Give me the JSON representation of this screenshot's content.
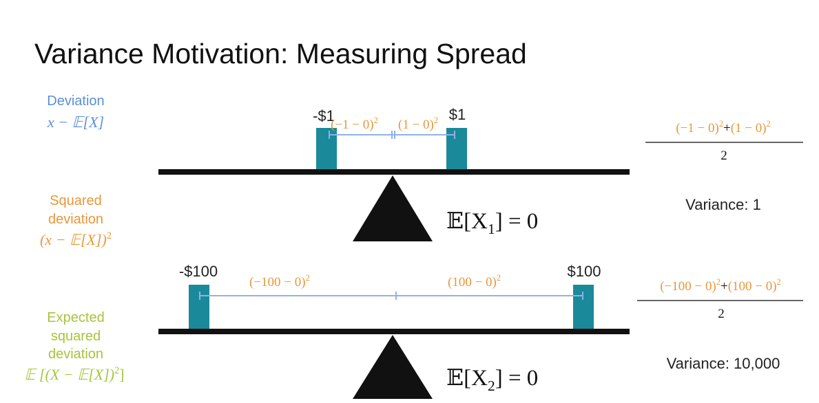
{
  "title": "Variance Motivation: Measuring Spread",
  "legend": {
    "deviation": {
      "lines": [
        "Deviation"
      ],
      "formula": {
        "base": "x − 𝔼[X]"
      }
    },
    "squared": {
      "lines": [
        "Squared",
        "deviation"
      ],
      "formula": {
        "base": "(x − 𝔼[X])",
        "exp": "2"
      }
    },
    "expected": {
      "lines": [
        "Expected",
        "squared",
        "deviation"
      ],
      "formula": {
        "base": "𝔼 [(X − 𝔼[X])",
        "exp": "2",
        "end": "]"
      }
    }
  },
  "scale1": {
    "left": "-$1",
    "right": "$1",
    "sq_left": {
      "base": "(−1 − 0)",
      "exp": "2"
    },
    "sq_right": {
      "base": "(1 − 0)",
      "exp": "2"
    },
    "expectation": {
      "base": "𝔼[X",
      "sub": "1",
      "end": "] = 0"
    },
    "fraction": {
      "left": {
        "base": "(−1 − 0)",
        "exp": "2"
      },
      "plus": "+",
      "right": {
        "base": "(1 − 0)",
        "exp": "2"
      },
      "denominator": "2"
    },
    "variance": "Variance: 1"
  },
  "scale2": {
    "left": "-$100",
    "right": "$100",
    "sq_left": {
      "base": "(−100 − 0)",
      "exp": "2"
    },
    "sq_right": {
      "base": "(100 − 0)",
      "exp": "2"
    },
    "expectation": {
      "base": "𝔼[X",
      "sub": "2",
      "end": "] = 0"
    },
    "fraction": {
      "left": {
        "base": "(−100 − 0)",
        "exp": "2"
      },
      "plus": "+",
      "right": {
        "base": "(100 − 0)",
        "exp": "2"
      },
      "denominator": "2"
    },
    "variance": "Variance: 10,000"
  }
}
